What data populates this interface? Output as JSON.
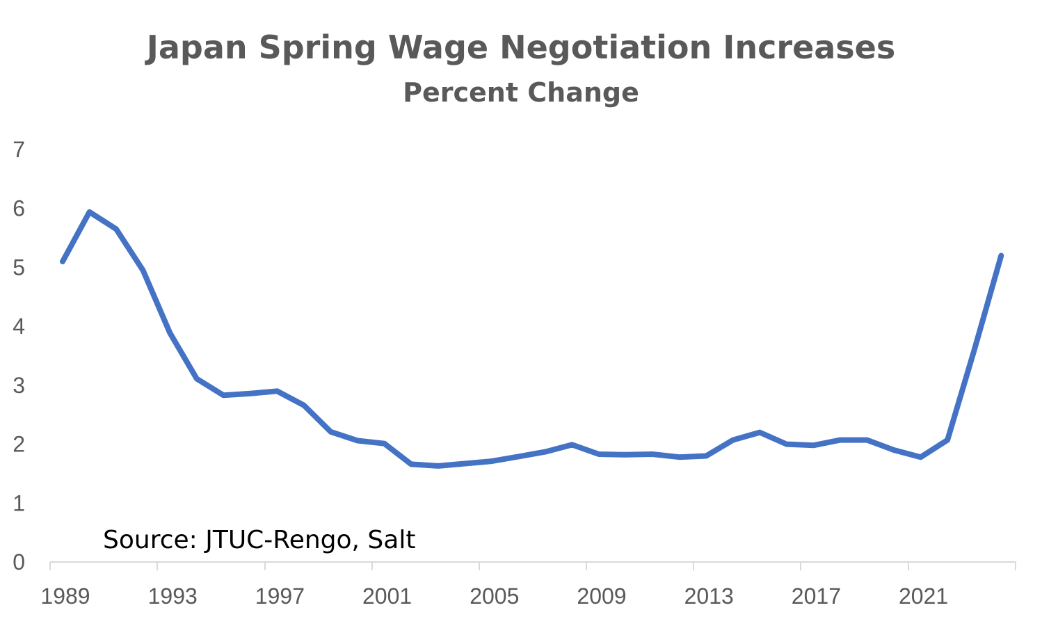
{
  "chart_data": {
    "type": "line",
    "title": "Japan Spring Wage Negotiation Increases",
    "subtitle": "Percent Change",
    "xlabel": "",
    "ylabel": "",
    "ylim": [
      0,
      7
    ],
    "xlim": [
      1989,
      2025
    ],
    "y_ticks": [
      "0",
      "1",
      "2",
      "3",
      "4",
      "5",
      "6",
      "7"
    ],
    "x_ticks": [
      "1989",
      "1993",
      "1997",
      "2001",
      "2005",
      "2009",
      "2013",
      "2017",
      "2021"
    ],
    "grid": false,
    "legend": "none",
    "annotation": "Source: JTUC-Rengo, Salt",
    "series": [
      {
        "color": "#4472C4",
        "x": [
          1989,
          1990,
          1991,
          1992,
          1993,
          1994,
          1995,
          1996,
          1997,
          1998,
          1999,
          2000,
          2001,
          2002,
          2003,
          2004,
          2005,
          2006,
          2007,
          2008,
          2009,
          2010,
          2011,
          2012,
          2013,
          2014,
          2015,
          2016,
          2017,
          2018,
          2019,
          2020,
          2021,
          2022,
          2023,
          2024
        ],
        "values": [
          5.1,
          5.94,
          5.65,
          4.95,
          3.89,
          3.11,
          2.83,
          2.86,
          2.9,
          2.66,
          2.21,
          2.06,
          2.01,
          1.66,
          1.63,
          1.67,
          1.71,
          1.79,
          1.87,
          1.99,
          1.83,
          1.82,
          1.83,
          1.78,
          1.8,
          2.07,
          2.2,
          2.0,
          1.98,
          2.07,
          2.07,
          1.9,
          1.78,
          2.07,
          3.6,
          5.2
        ]
      }
    ]
  }
}
